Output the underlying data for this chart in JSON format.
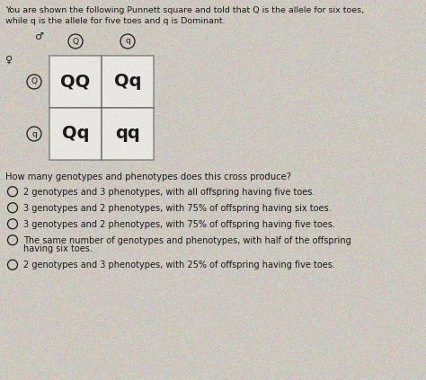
{
  "title_line1": "You are shown the following Punnett square and told that Q is the allele for six toes,",
  "title_line2": "while q is the allele for five toes and q is Dominant.",
  "male_symbol": "♂",
  "female_symbol": "♀",
  "col_alleles": [
    "Q",
    "q"
  ],
  "row_alleles": [
    "Q",
    "q"
  ],
  "cells": [
    [
      "QQ",
      "Qq"
    ],
    [
      "Qq",
      "qq"
    ]
  ],
  "question": "How many genotypes and phenotypes does this cross produce?",
  "options": [
    "2 genotypes and 3 phenotypes, with all offspring having five toes.",
    "3 genotypes and 2 phenotypes, with 75% of offspring having six toes.",
    "3 genotypes and 2 phenotypes, with 75% of offspring having five toes.",
    "The same number of genotypes and phenotypes, with half of the offspring\nhaving six toes.",
    "2 genotypes and 3 phenotypes, with 25% of offspring having five toes."
  ],
  "bg_color": "#cdc8c0",
  "text_color": "#1a1a1a",
  "grid_color": "#444444",
  "cell_color": "#e0dbd4"
}
